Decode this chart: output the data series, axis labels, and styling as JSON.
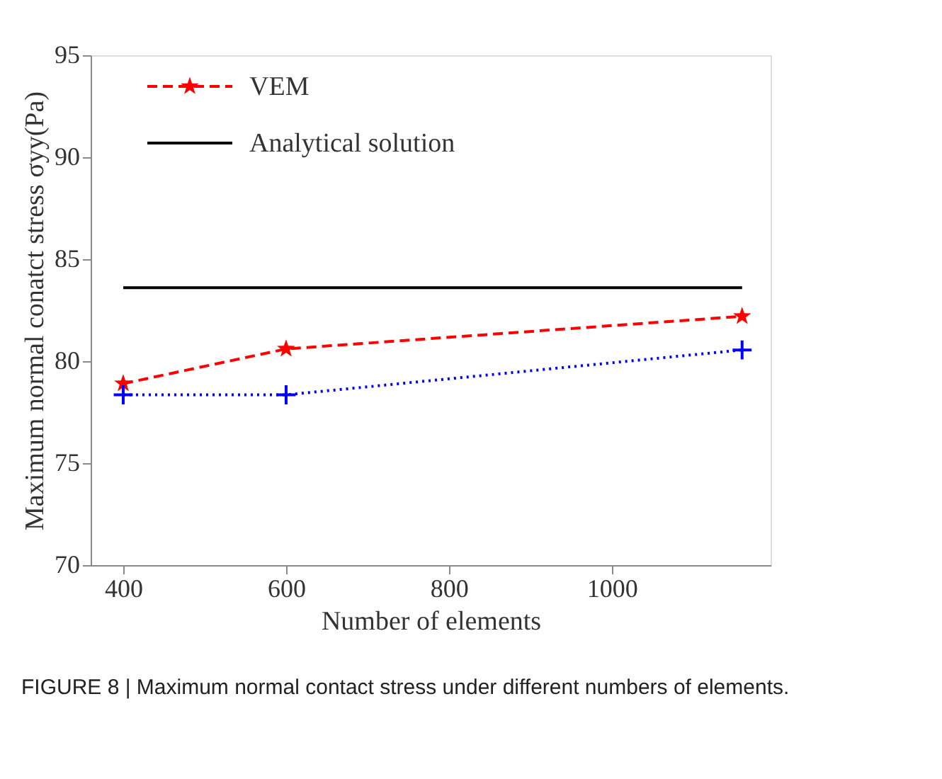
{
  "chart_data": {
    "type": "line",
    "xlabel": "Number of elements",
    "ylabel": "Maximum normal conatct stress σyy(Pa)",
    "xlim": [
      360,
      1195
    ],
    "xticks": [
      400,
      600,
      800,
      1000
    ],
    "ylim": [
      70,
      95
    ],
    "yticks": [
      70,
      75,
      80,
      85,
      90,
      95
    ],
    "grid": false,
    "legend": "top left",
    "series": [
      {
        "name": "VEM",
        "color": "#ff0000",
        "x": [
          400,
          600,
          1160
        ],
        "values": [
          78.9,
          80.6,
          82.2
        ],
        "marker": "star",
        "line_style": "dashed"
      },
      {
        "color": "#0000ff",
        "x": [
          400,
          600,
          1160
        ],
        "values": [
          78.35,
          78.35,
          80.55
        ],
        "marker": "cross",
        "line_style": "dotted"
      },
      {
        "name": "Analytical solution",
        "color": "#000000",
        "x": [
          400,
          1160
        ],
        "values": [
          83.6,
          83.6
        ],
        "marker": "none",
        "line_style": "solid"
      }
    ],
    "annotations": [
      "FIGURE 8 | Maximum normal contact stress under different numbers of elements."
    ]
  }
}
